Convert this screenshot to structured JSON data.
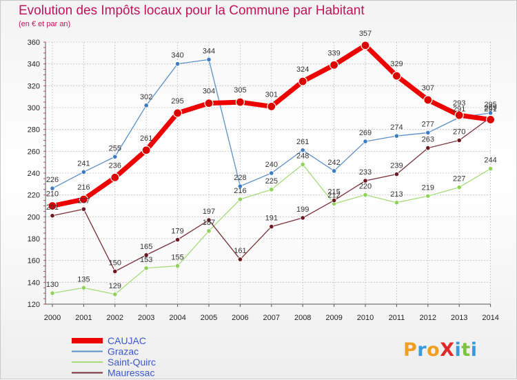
{
  "header": {
    "title": "Evolution des Impôts locaux pour la Commune par Habitant",
    "subtitle": "(en € et par an)"
  },
  "logo": {
    "text": "ProXiti",
    "letters": [
      {
        "ch": "P",
        "color": "#f0a020"
      },
      {
        "ch": "r",
        "color": "#3a9ad9"
      },
      {
        "ch": "o",
        "color": "#f0a020"
      },
      {
        "ch": "X",
        "color": "#e02a2a"
      },
      {
        "ch": "i",
        "color": "#3a9ad9"
      },
      {
        "ch": "t",
        "color": "#7cc242"
      },
      {
        "ch": "i",
        "color": "#3a9ad9"
      }
    ]
  },
  "chart_data": {
    "type": "line",
    "title": "Evolution des Impôts locaux pour la Commune par Habitant",
    "subtitle": "(en € et par an)",
    "xlabel": "",
    "ylabel": "",
    "ylim": [
      120,
      360
    ],
    "yticks": [
      120,
      140,
      160,
      180,
      200,
      220,
      240,
      260,
      280,
      300,
      320,
      340,
      360
    ],
    "grid": true,
    "legend_position": "bottom-left",
    "x": [
      "2000",
      "2001",
      "2002",
      "2003",
      "2004",
      "2005",
      "2006",
      "2007",
      "2008",
      "2009",
      "2010",
      "2011",
      "2012",
      "2013",
      "2014"
    ],
    "series": [
      {
        "name": "Grazac",
        "color": "#5b8fc9",
        "marker_color": "#3b7cc4",
        "values": [
          226,
          241,
          255,
          302,
          340,
          344,
          228,
          240,
          261,
          242,
          269,
          274,
          277,
          291,
          295
        ]
      },
      {
        "name": "Saint-Quirc",
        "color": "#a6dc7a",
        "marker_color": "#8fd35a",
        "values": [
          130,
          135,
          129,
          153,
          155,
          187,
          216,
          225,
          248,
          212,
          220,
          213,
          219,
          227,
          244
        ]
      },
      {
        "name": "Mauressac",
        "color": "#7a2e36",
        "marker_color": "#6b1a22",
        "values": [
          201,
          207,
          150,
          165,
          179,
          197,
          161,
          191,
          199,
          215,
          233,
          239,
          263,
          270,
          291
        ]
      },
      {
        "name": "CAUJAC",
        "color": "#ee0000",
        "marker_color": "#dd0000",
        "values": [
          210,
          216,
          236,
          261,
          295,
          304,
          305,
          301,
          324,
          339,
          357,
          329,
          307,
          293,
          289
        ]
      }
    ],
    "point_labels": [
      {
        "series": "Grazac",
        "labels": [
          "226",
          "241",
          "255",
          "302",
          "340",
          "344",
          "228",
          "240",
          "261",
          "242",
          "269",
          "274",
          "277",
          "291",
          "295"
        ]
      },
      {
        "series": "Saint-Quirc",
        "labels": [
          "130",
          "135",
          "129",
          "153",
          "155",
          "187",
          "216",
          "225",
          "248",
          "212",
          "220",
          "213",
          "219",
          "227",
          "244"
        ]
      },
      {
        "series": "Mauressac",
        "labels": [
          "201",
          "207",
          "150",
          "165",
          "179",
          "197",
          "161",
          "191",
          "199",
          "215",
          "233",
          "239",
          "263",
          "270",
          "291"
        ]
      },
      {
        "series": "CAUJAC",
        "labels": [
          "210",
          "216",
          "236",
          "261",
          "295",
          "304",
          "305",
          "301",
          "324",
          "339",
          "357",
          "329",
          "307",
          "293",
          "289"
        ]
      }
    ],
    "legend": [
      {
        "name": "CAUJAC",
        "color": "#ee0000"
      },
      {
        "name": "Grazac",
        "color": "#5b8fc9"
      },
      {
        "name": "Saint-Quirc",
        "color": "#a6dc7a"
      },
      {
        "name": "Mauressac",
        "color": "#7a2e36"
      }
    ]
  }
}
